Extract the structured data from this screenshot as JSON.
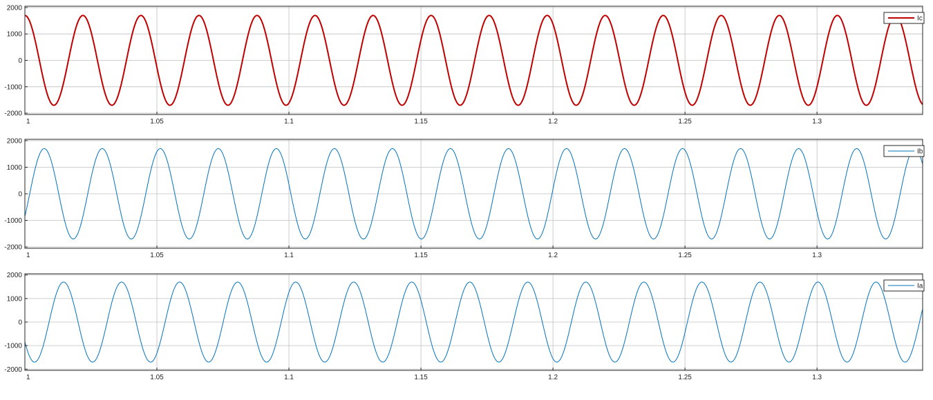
{
  "chart_data": [
    {
      "type": "line",
      "title": "",
      "xlabel": "",
      "ylabel": "",
      "xlim": [
        1.0,
        1.34
      ],
      "ylim": [
        -2050,
        2050
      ],
      "x_ticks": [
        1,
        1.05,
        1.1,
        1.15,
        1.2,
        1.25,
        1.3
      ],
      "x_tick_labels": [
        "1",
        "1.05",
        "1.1",
        "1.15",
        "1.2",
        "1.25",
        "1.3"
      ],
      "y_ticks": [
        -2000,
        -1000,
        0,
        1000,
        2000
      ],
      "y_tick_labels": [
        "-2000",
        "-1000",
        "0",
        "1000",
        "2000"
      ],
      "grid": true,
      "legend_position": "top-right",
      "series": [
        {
          "name": "Ic",
          "color": "#c00000",
          "line_width": "thick",
          "waveform": "sine",
          "amplitude": 1700,
          "frequency_hz": 45.5,
          "phase_deg": 90
        }
      ]
    },
    {
      "type": "line",
      "title": "",
      "xlabel": "",
      "ylabel": "",
      "xlim": [
        1.0,
        1.34
      ],
      "ylim": [
        -2050,
        2050
      ],
      "x_ticks": [
        1,
        1.05,
        1.1,
        1.15,
        1.2,
        1.25,
        1.3
      ],
      "x_tick_labels": [
        "1",
        "1.05",
        "1.1",
        "1.15",
        "1.2",
        "1.25",
        "1.3"
      ],
      "y_ticks": [
        -2000,
        -1000,
        0,
        1000,
        2000
      ],
      "y_tick_labels": [
        "-2000",
        "-1000",
        "0",
        "1000",
        "2000"
      ],
      "grid": true,
      "legend_position": "top-right",
      "series": [
        {
          "name": "Ib",
          "color": "#0072bd",
          "line_width": "thin",
          "waveform": "sine",
          "amplitude": 1700,
          "frequency_hz": 45.5,
          "phase_deg": -30
        }
      ]
    },
    {
      "type": "line",
      "title": "",
      "xlabel": "",
      "ylabel": "",
      "xlim": [
        1.0,
        1.34
      ],
      "ylim": [
        -2050,
        2050
      ],
      "x_ticks": [
        1,
        1.05,
        1.1,
        1.15,
        1.2,
        1.25,
        1.3
      ],
      "x_tick_labels": [
        "1",
        "1.05",
        "1.1",
        "1.15",
        "1.2",
        "1.25",
        "1.3"
      ],
      "y_ticks": [
        -2000,
        -1000,
        0,
        1000,
        2000
      ],
      "y_tick_labels": [
        "-2000",
        "-1000",
        "0",
        "1000",
        "2000"
      ],
      "grid": true,
      "legend_position": "top-right",
      "series": [
        {
          "name": "Ia",
          "color": "#0072bd",
          "line_width": "thin",
          "waveform": "sine",
          "amplitude": 1700,
          "frequency_hz": 45.5,
          "phase_deg": -150
        }
      ]
    }
  ]
}
